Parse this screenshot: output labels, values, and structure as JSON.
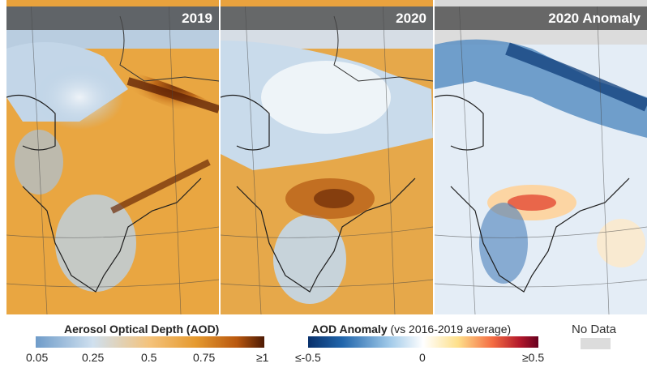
{
  "panels": [
    {
      "title": "2019"
    },
    {
      "title": "2020"
    },
    {
      "title": "2020 Anomaly"
    }
  ],
  "legend_aod": {
    "title": "Aerosol Optical Depth (AOD)",
    "ticks": [
      "0.05",
      "0.25",
      "0.5",
      "0.75",
      "≥1"
    ],
    "colors": [
      "#6f9cc9",
      "#cfe0ef",
      "#f4c27a",
      "#e59a2f",
      "#b9580f",
      "#4d1a04"
    ]
  },
  "legend_anomaly": {
    "title": "AOD Anomaly",
    "subtitle": "(vs 2016-2019 average)",
    "ticks": [
      "≤-0.5",
      "0",
      "≥0.5"
    ],
    "colors": [
      "#08306b",
      "#2166ac",
      "#9ec8e8",
      "#ffffff",
      "#fee08b",
      "#f46d43",
      "#b2182b",
      "#67001f"
    ]
  },
  "nodata": {
    "label": "No Data",
    "color": "#dcdcdc"
  }
}
